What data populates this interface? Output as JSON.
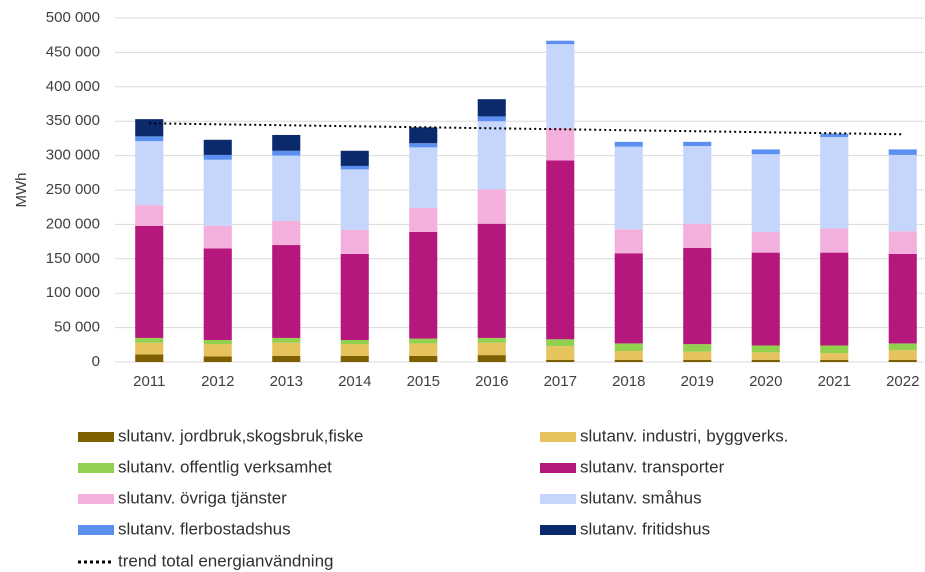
{
  "chart_data": {
    "type": "bar",
    "stacked": true,
    "ylabel": "MWh",
    "categories": [
      "2011",
      "2012",
      "2013",
      "2014",
      "2015",
      "2016",
      "2017",
      "2018",
      "2019",
      "2020",
      "2021",
      "2022"
    ],
    "ylim": [
      0,
      500000
    ],
    "yticks": [
      0,
      {
        "value": 50000,
        "label": "50 000"
      },
      {
        "value": 100000,
        "label": "100 000"
      },
      {
        "value": 150000,
        "label": "150 000"
      },
      {
        "value": 200000,
        "label": "200 000"
      },
      {
        "value": 250000,
        "label": "250 000"
      },
      {
        "value": 300000,
        "label": "300 000"
      },
      {
        "value": 350000,
        "label": "350 000"
      },
      {
        "value": 400000,
        "label": "400 000"
      },
      {
        "value": 450000,
        "label": "450 000"
      },
      {
        "value": 500000,
        "label": "500 000"
      }
    ],
    "grid": true,
    "series": [
      {
        "name": "slutanv. jordbruk,skogsbruk,fiske",
        "color": "#7f6000",
        "values": [
          11000,
          8000,
          9000,
          9000,
          9000,
          10000,
          3000,
          3000,
          3000,
          3000,
          3000,
          3000
        ]
      },
      {
        "name": "slutanv. industri, byggverks.",
        "color": "#e6c35c",
        "values": [
          17000,
          18000,
          19000,
          17000,
          18000,
          18000,
          20000,
          13000,
          12000,
          11000,
          10000,
          14000
        ]
      },
      {
        "name": "slutanv. offentlig verksamhet",
        "color": "#92d050",
        "values": [
          7000,
          6000,
          7000,
          6000,
          7000,
          7000,
          10000,
          11000,
          11000,
          10000,
          11000,
          10000
        ]
      },
      {
        "name": "slutanv. transporter",
        "color": "#b5177c",
        "values": [
          163000,
          133000,
          135000,
          125000,
          155000,
          166000,
          260000,
          131000,
          140000,
          135000,
          135000,
          130000
        ]
      },
      {
        "name": "slutanv. övriga tjänster",
        "color": "#f4b0dc",
        "values": [
          30000,
          33000,
          35000,
          35000,
          35000,
          50000,
          47000,
          35000,
          35000,
          30000,
          35000,
          33000
        ]
      },
      {
        "name": "slutanv. småhus",
        "color": "#c5d5fb",
        "values": [
          93000,
          96000,
          95000,
          88000,
          88000,
          99000,
          122000,
          120000,
          113000,
          113000,
          133000,
          111000
        ]
      },
      {
        "name": "slutanv. flerbostadshus",
        "color": "#5b8ff0",
        "values": [
          7000,
          7000,
          7000,
          5000,
          6000,
          7000,
          5000,
          7000,
          6000,
          7000,
          5000,
          8000
        ]
      },
      {
        "name": "slutanv. fritidshus",
        "color": "#0b2a6b",
        "values": [
          25000,
          22000,
          23000,
          22000,
          23000,
          25000,
          0,
          0,
          0,
          0,
          0,
          0
        ]
      }
    ],
    "trend": {
      "name": "trend total energianvändning",
      "color": "#000000",
      "values": [
        347000,
        345500,
        344100,
        342600,
        341200,
        339700,
        338300,
        336800,
        335400,
        333900,
        332500,
        331000
      ]
    }
  }
}
